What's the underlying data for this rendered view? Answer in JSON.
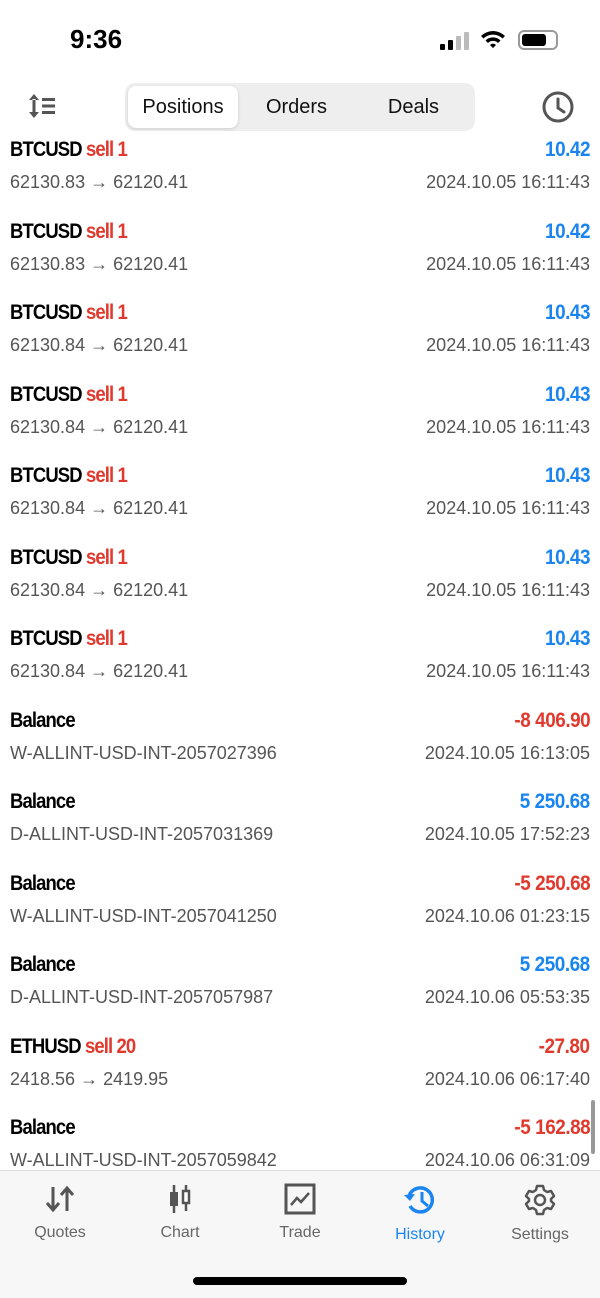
{
  "status_bar": {
    "time": "9:36"
  },
  "segments": [
    "Positions",
    "Orders",
    "Deals"
  ],
  "active_segment": "Positions",
  "colors": {
    "accent": "#1a84f0",
    "negative": "#e03a2e"
  },
  "rows": [
    {
      "symbol": "BTCUSD",
      "side": "sell 1",
      "detail": "62130.83 → 62120.41",
      "date": "2024.10.05 16:11:43",
      "value": "10.42",
      "sign": "pos"
    },
    {
      "symbol": "BTCUSD",
      "side": "sell 1",
      "detail": "62130.83 → 62120.41",
      "date": "2024.10.05 16:11:43",
      "value": "10.42",
      "sign": "pos"
    },
    {
      "symbol": "BTCUSD",
      "side": "sell 1",
      "detail": "62130.84 → 62120.41",
      "date": "2024.10.05 16:11:43",
      "value": "10.43",
      "sign": "pos"
    },
    {
      "symbol": "BTCUSD",
      "side": "sell 1",
      "detail": "62130.84 → 62120.41",
      "date": "2024.10.05 16:11:43",
      "value": "10.43",
      "sign": "pos"
    },
    {
      "symbol": "BTCUSD",
      "side": "sell 1",
      "detail": "62130.84 → 62120.41",
      "date": "2024.10.05 16:11:43",
      "value": "10.43",
      "sign": "pos"
    },
    {
      "symbol": "BTCUSD",
      "side": "sell 1",
      "detail": "62130.84 → 62120.41",
      "date": "2024.10.05 16:11:43",
      "value": "10.43",
      "sign": "pos"
    },
    {
      "symbol": "BTCUSD",
      "side": "sell 1",
      "detail": "62130.84 → 62120.41",
      "date": "2024.10.05 16:11:43",
      "value": "10.43",
      "sign": "pos"
    },
    {
      "symbol": "Balance",
      "side": "",
      "detail": "W-ALLINT-USD-INT-2057027396",
      "date": "2024.10.05 16:13:05",
      "value": "-8 406.90",
      "sign": "neg"
    },
    {
      "symbol": "Balance",
      "side": "",
      "detail": "D-ALLINT-USD-INT-2057031369",
      "date": "2024.10.05 17:52:23",
      "value": "5 250.68",
      "sign": "pos"
    },
    {
      "symbol": "Balance",
      "side": "",
      "detail": "W-ALLINT-USD-INT-2057041250",
      "date": "2024.10.06 01:23:15",
      "value": "-5 250.68",
      "sign": "neg"
    },
    {
      "symbol": "Balance",
      "side": "",
      "detail": "D-ALLINT-USD-INT-2057057987",
      "date": "2024.10.06 05:53:35",
      "value": "5 250.68",
      "sign": "pos"
    },
    {
      "symbol": "ETHUSD",
      "side": "sell 20",
      "detail": "2418.56 → 2419.95",
      "date": "2024.10.06 06:17:40",
      "value": "-27.80",
      "sign": "neg"
    },
    {
      "symbol": "Balance",
      "side": "",
      "detail": "W-ALLINT-USD-INT-2057059842",
      "date": "2024.10.06 06:31:09",
      "value": "-5 162.88",
      "sign": "neg"
    }
  ],
  "tabs": [
    {
      "label": "Quotes",
      "icon": "quotes-arrows-icon"
    },
    {
      "label": "Chart",
      "icon": "candlestick-icon"
    },
    {
      "label": "Trade",
      "icon": "trade-chart-icon"
    },
    {
      "label": "History",
      "icon": "history-icon",
      "active": true
    },
    {
      "label": "Settings",
      "icon": "gear-icon"
    }
  ]
}
